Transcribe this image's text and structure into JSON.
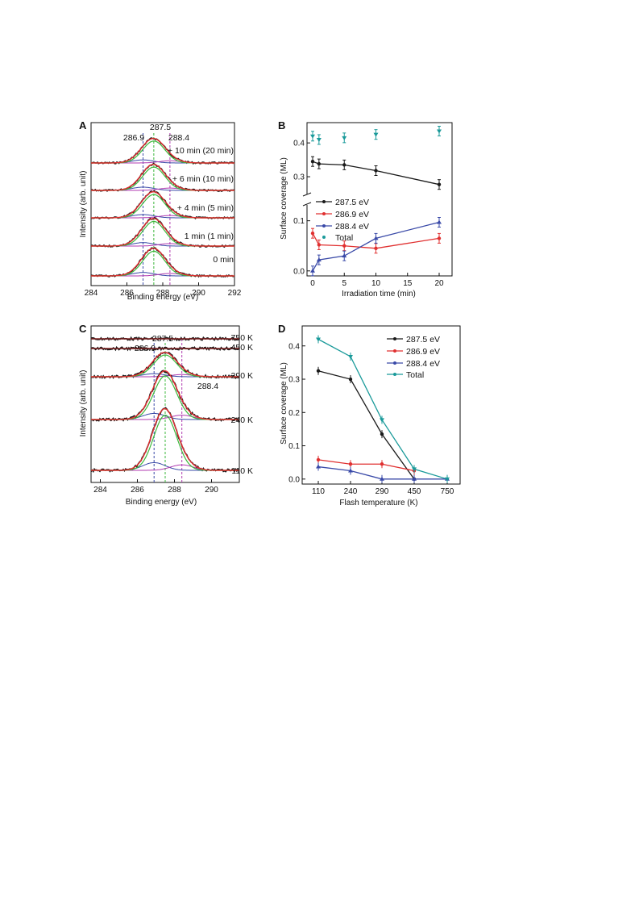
{
  "colors": {
    "black": "#1a1a1a",
    "red": "#e03030",
    "blue": "#3a4aa8",
    "teal": "#1a9a9a",
    "green": "#3cb83c",
    "purple": "#b03ab0",
    "darkred": "#7a1e1e"
  },
  "chart_data": [
    {
      "panel": "A",
      "type": "line",
      "xlabel": "Binding energy (eV)",
      "ylabel": "Intensity (arb. unit)",
      "xlim": [
        284,
        292
      ],
      "xticks": [
        "284",
        "286",
        "288",
        "290",
        "292"
      ],
      "peak_labels": [
        "286.9",
        "287.5",
        "288.4"
      ],
      "peak_positions": [
        286.9,
        287.5,
        288.4
      ],
      "trace_labels": [
        "+ 10 min (20 min)",
        "+ 6 min (10 min)",
        "+ 4 min (5 min)",
        "1 min (1 min)",
        "0 min"
      ],
      "trace_amplitudes": [
        0.8,
        0.85,
        0.85,
        0.9,
        0.9
      ]
    },
    {
      "panel": "B",
      "type": "line",
      "xlabel": "Irradiation time (min)",
      "ylabel": "Surface coverage (ML)",
      "xticks": [
        "0",
        "5",
        "10",
        "15",
        "20"
      ],
      "yticks_upper": [
        "0.3",
        "0.4"
      ],
      "yticks_lower": [
        "0.0",
        "0.1"
      ],
      "ylim_upper": [
        0.25,
        0.46
      ],
      "ylim_lower": [
        -0.01,
        0.13
      ],
      "axis_break": true,
      "x": [
        0,
        1,
        5,
        10,
        20
      ],
      "series": [
        {
          "name": "287.5 eV",
          "color": "#1a1a1a",
          "values": [
            0.345,
            0.338,
            0.335,
            0.318,
            0.277
          ]
        },
        {
          "name": "286.9 eV",
          "color": "#e03030",
          "values": [
            0.075,
            0.052,
            0.05,
            0.045,
            0.065
          ]
        },
        {
          "name": "288.4 eV",
          "color": "#3a4aa8",
          "values": [
            0.0,
            0.022,
            0.03,
            0.065,
            0.097
          ]
        },
        {
          "name": "Total",
          "color": "#1a9a9a",
          "values": [
            0.42,
            0.41,
            0.415,
            0.425,
            0.435
          ]
        }
      ]
    },
    {
      "panel": "C",
      "type": "line",
      "xlabel": "Binding energy (eV)",
      "ylabel": "Intensity (arb. unit)",
      "xlim": [
        283.5,
        291.5
      ],
      "xticks": [
        "284",
        "286",
        "288",
        "290"
      ],
      "peak_labels": [
        "286.9",
        "287.5",
        "288.4"
      ],
      "peak_positions": [
        286.9,
        287.5,
        288.4
      ],
      "trace_labels": [
        "750 K",
        "450 K",
        "290 K",
        "240 K",
        "110 K"
      ],
      "trace_amplitudes": [
        0.0,
        0.0,
        0.75,
        1.5,
        1.9
      ]
    },
    {
      "panel": "D",
      "type": "line",
      "xlabel": "Flash temperature (K)",
      "ylabel": "Surface coverage (ML)",
      "categories": [
        "110",
        "240",
        "290",
        "450",
        "750"
      ],
      "yticks": [
        "0.0",
        "0.1",
        "0.2",
        "0.3",
        "0.4"
      ],
      "ylim": [
        -0.015,
        0.46
      ],
      "series": [
        {
          "name": "287.5 eV",
          "color": "#1a1a1a",
          "values": [
            0.325,
            0.3,
            0.135,
            0.0,
            null
          ]
        },
        {
          "name": "286.9 eV",
          "color": "#e03030",
          "values": [
            0.058,
            0.045,
            0.045,
            0.025,
            null
          ]
        },
        {
          "name": "288.4 eV",
          "color": "#3a4aa8",
          "values": [
            0.037,
            0.025,
            0.0,
            0.0,
            0.0
          ]
        },
        {
          "name": "Total",
          "color": "#1a9a9a",
          "values": [
            0.42,
            0.368,
            0.178,
            0.03,
            0.0
          ]
        }
      ]
    }
  ]
}
